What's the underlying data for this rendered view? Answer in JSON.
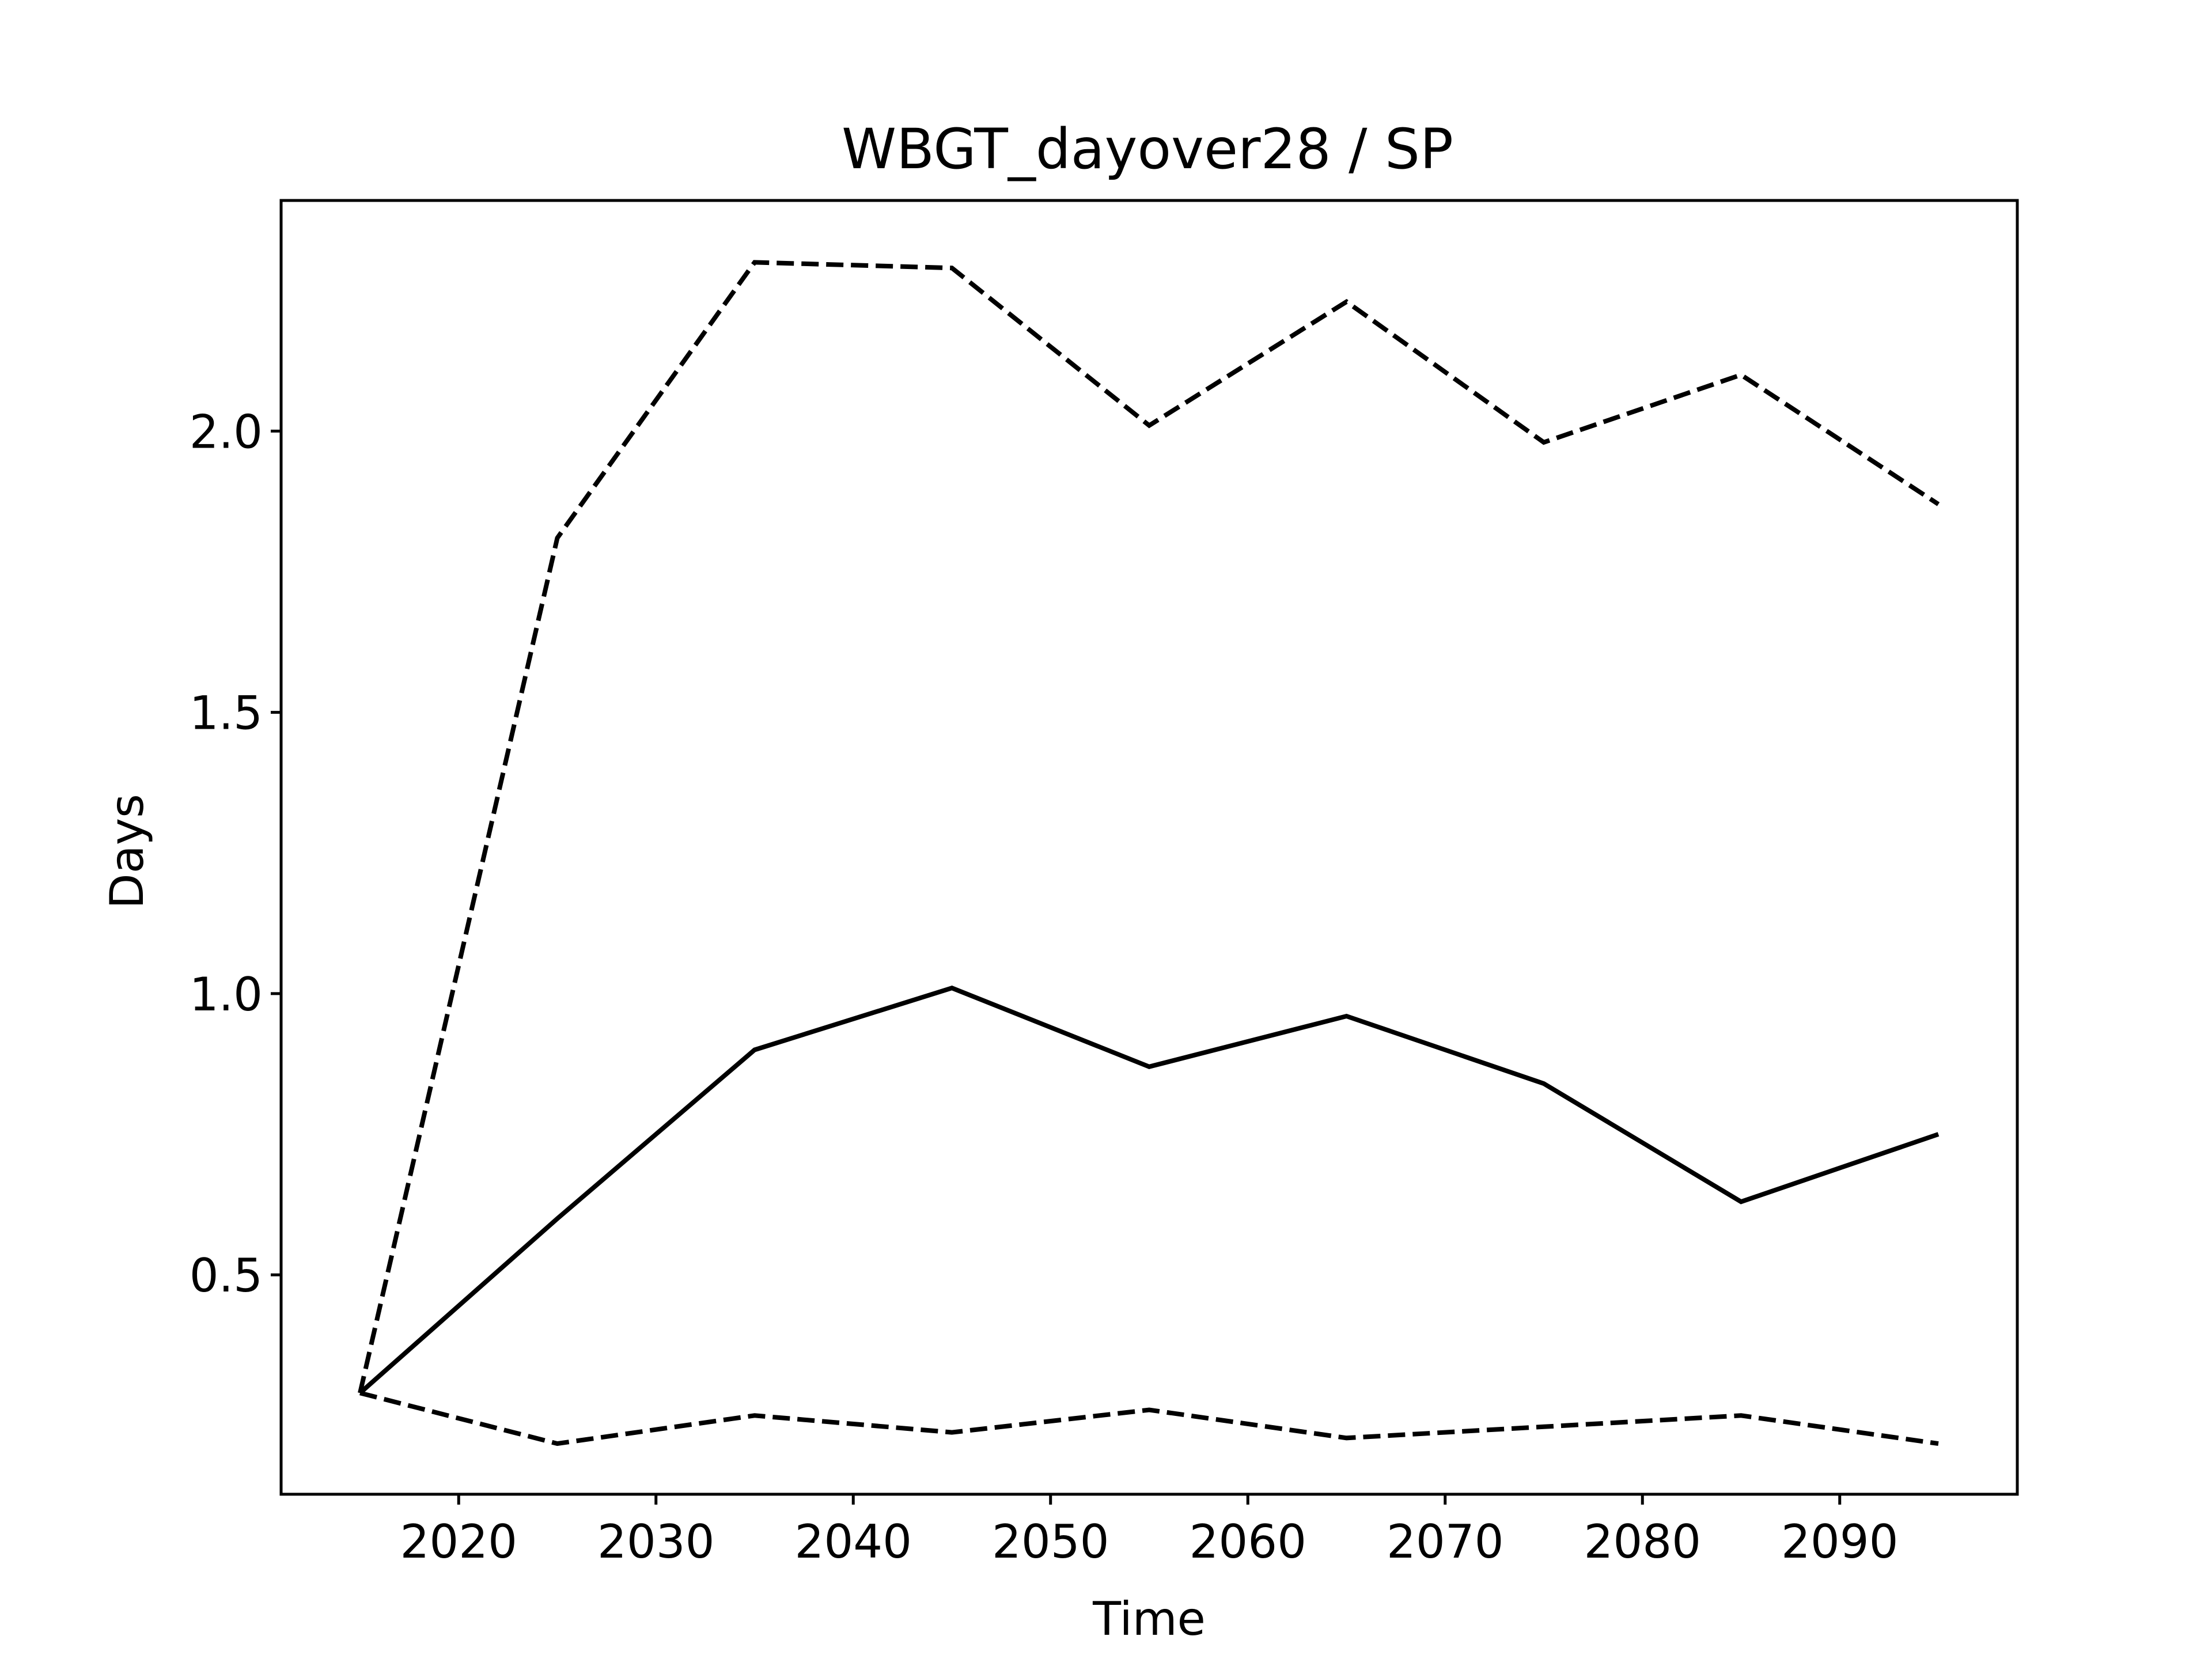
{
  "chart_data": {
    "type": "line",
    "title": "WBGT_dayover28 / SP",
    "xlabel": "Time",
    "ylabel": "Days",
    "x": [
      2015,
      2025,
      2035,
      2045,
      2055,
      2065,
      2075,
      2085,
      2095
    ],
    "xlim": [
      2011,
      2099
    ],
    "ylim": [
      0.11,
      2.41
    ],
    "xticks": [
      2020,
      2030,
      2040,
      2050,
      2060,
      2070,
      2080,
      2090
    ],
    "xtick_labels": [
      "2020",
      "2030",
      "2040",
      "2050",
      "2060",
      "2070",
      "2080",
      "2090"
    ],
    "yticks": [
      0.5,
      1.0,
      1.5,
      2.0
    ],
    "ytick_labels": [
      "0.5",
      "1.0",
      "1.5",
      "2.0"
    ],
    "grid": false,
    "series": [
      {
        "style": "dashed",
        "color": "#000000",
        "values": [
          0.29,
          1.81,
          2.3,
          2.29,
          2.01,
          2.23,
          1.98,
          2.1,
          1.87
        ]
      },
      {
        "style": "solid",
        "color": "#000000",
        "values": [
          0.29,
          0.6,
          0.9,
          1.01,
          0.87,
          0.96,
          0.84,
          0.63,
          0.75
        ]
      },
      {
        "style": "dashed",
        "color": "#000000",
        "values": [
          0.29,
          0.2,
          0.25,
          0.22,
          0.26,
          0.21,
          0.23,
          0.25,
          0.2
        ]
      }
    ]
  }
}
